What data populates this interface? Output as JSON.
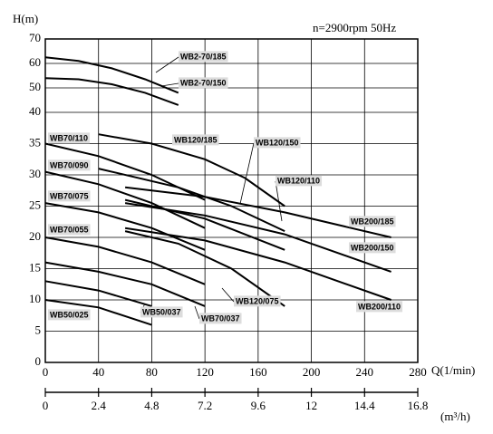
{
  "chart_data": {
    "type": "line",
    "title": "n=2900rpm 50Hz",
    "y_label": "H(m)",
    "x_label": "Q(1/min)",
    "x2_label": "(m³/h)",
    "xlim": [
      0,
      280
    ],
    "xticks": [
      0,
      40,
      80,
      120,
      160,
      200,
      240,
      280
    ],
    "x2lim": [
      0,
      16.8
    ],
    "x2ticks": [
      0,
      2.4,
      4.8,
      7.2,
      9.6,
      12,
      14.4,
      16.8
    ],
    "ylim": [
      0,
      70
    ],
    "yticks": [
      0,
      5,
      10,
      15,
      20,
      25,
      30,
      35,
      40,
      50,
      60,
      70
    ],
    "grid": true,
    "series": [
      {
        "name": "WB2-70/185",
        "color": "#000000",
        "x": [
          0,
          25,
          50,
          75,
          100
        ],
        "values": [
          62.5,
          61,
          58,
          53.5,
          48
        ]
      },
      {
        "name": "WB2-70/150",
        "color": "#000000",
        "x": [
          0,
          25,
          50,
          75,
          100
        ],
        "values": [
          54,
          53.5,
          51.5,
          48,
          43
        ]
      },
      {
        "name": "WB70/110",
        "color": "#000000",
        "x": [
          0,
          40,
          80,
          120
        ],
        "values": [
          35,
          33,
          30,
          26
        ]
      },
      {
        "name": "WB70/090",
        "color": "#000000",
        "x": [
          0,
          40,
          80,
          120
        ],
        "values": [
          30.5,
          28.5,
          25.5,
          21.5
        ]
      },
      {
        "name": "WB70/075",
        "color": "#000000",
        "x": [
          0,
          40,
          80,
          120
        ],
        "values": [
          25.5,
          24,
          21.5,
          18
        ]
      },
      {
        "name": "WB70/055",
        "color": "#000000",
        "x": [
          0,
          40,
          80,
          120
        ],
        "values": [
          20,
          18.5,
          16,
          12.5
        ]
      },
      {
        "name": "WB70/037",
        "color": "#000000",
        "x": [
          0,
          40,
          80,
          120
        ],
        "values": [
          16,
          14.5,
          12.5,
          9
        ]
      },
      {
        "name": "WB50/037",
        "color": "#000000",
        "x": [
          0,
          40,
          80
        ],
        "values": [
          13,
          11.5,
          9
        ]
      },
      {
        "name": "WB50/025",
        "color": "#000000",
        "x": [
          0,
          40,
          80
        ],
        "values": [
          10,
          8.8,
          6
        ]
      },
      {
        "name": "WB120/185",
        "color": "#000000",
        "x": [
          40,
          80,
          120,
          150,
          180
        ],
        "values": [
          36.5,
          35,
          32.5,
          29.5,
          25
        ]
      },
      {
        "name": "WB120/150",
        "color": "#000000",
        "x": [
          40,
          100,
          140,
          180
        ],
        "values": [
          31,
          28,
          25,
          21
        ]
      },
      {
        "name": "WB120/110",
        "color": "#000000",
        "x": [
          60,
          120,
          180
        ],
        "values": [
          26,
          23,
          18
        ]
      },
      {
        "name": "WB120/075",
        "color": "#000000",
        "x": [
          60,
          100,
          140,
          180
        ],
        "values": [
          21,
          19,
          15,
          9
        ]
      },
      {
        "name": "WB200/185",
        "color": "#000000",
        "x": [
          60,
          120,
          180,
          260
        ],
        "values": [
          28,
          26.5,
          24,
          20
        ]
      },
      {
        "name": "WB200/150",
        "color": "#000000",
        "x": [
          60,
          120,
          180,
          260
        ],
        "values": [
          25.5,
          23.5,
          20.5,
          14.5
        ]
      },
      {
        "name": "WB200/110",
        "color": "#000000",
        "x": [
          60,
          120,
          180,
          260
        ],
        "values": [
          21.5,
          19.5,
          16,
          10
        ]
      }
    ]
  }
}
